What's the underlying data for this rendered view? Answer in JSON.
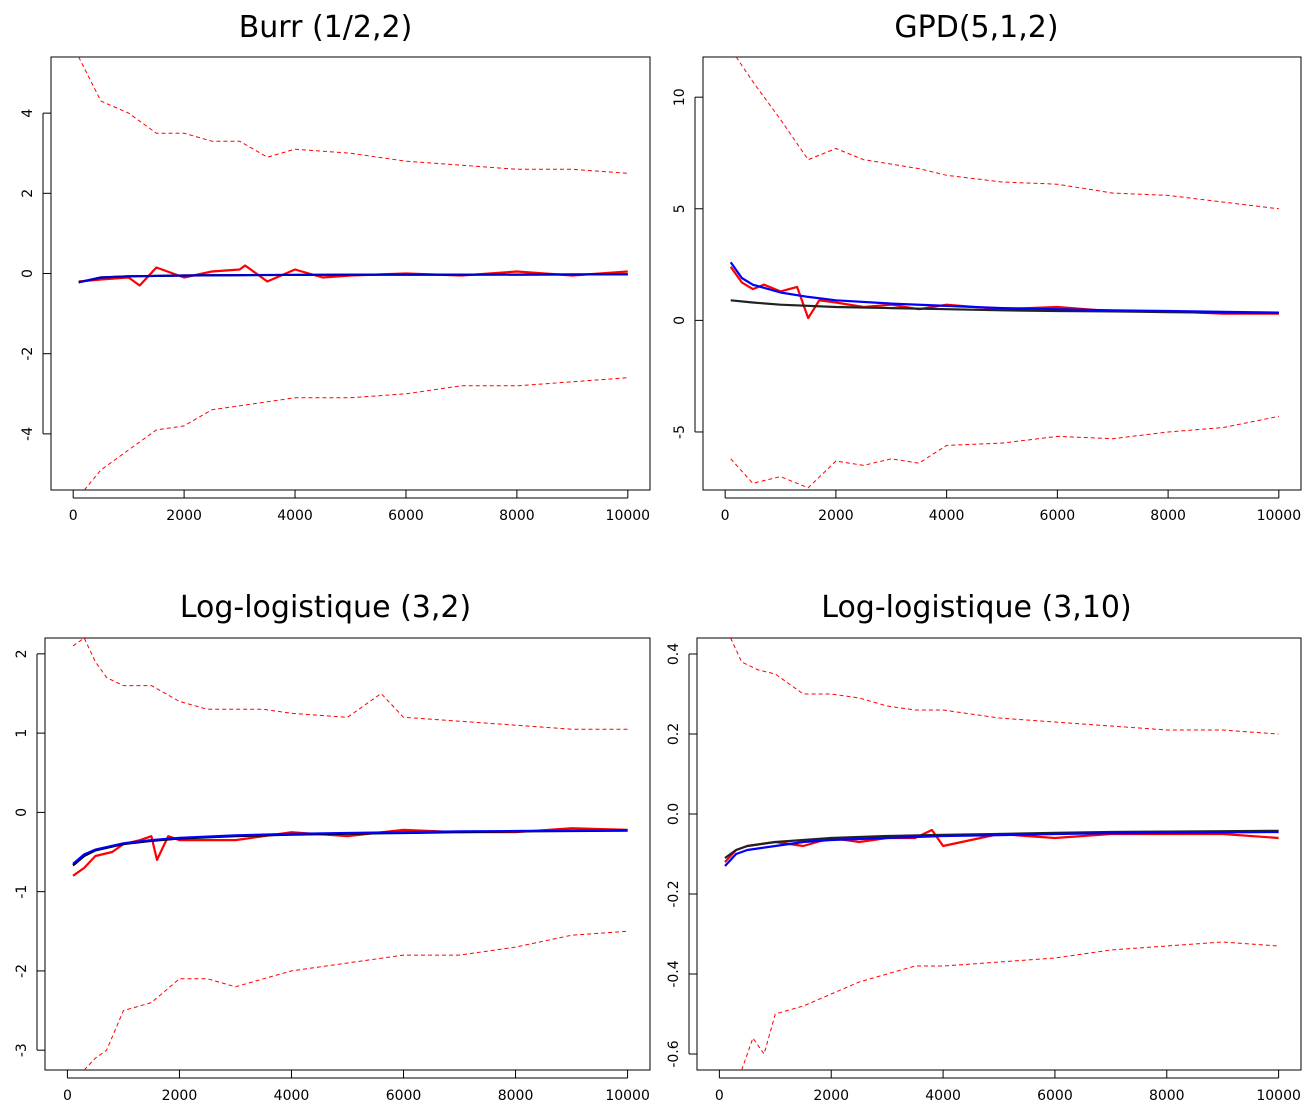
{
  "chart_data": [
    {
      "type": "line",
      "title": "Burr (1/2,2)",
      "xlim": [
        0,
        10000
      ],
      "ylim": [
        -5.4,
        5.4
      ],
      "xticks": [
        "0",
        "2000",
        "4000",
        "6000",
        "8000",
        "10000"
      ],
      "yticks": [
        "-4",
        "-2",
        "0",
        "2",
        "4"
      ],
      "grid": false,
      "series": [
        {
          "style": "dashed",
          "color": "#ff0000",
          "x": [
            100,
            500,
            1000,
            1500,
            2000,
            2500,
            3000,
            3500,
            4000,
            5000,
            6000,
            7000,
            8000,
            9000,
            10000
          ],
          "y": [
            5.4,
            4.3,
            4.0,
            3.5,
            3.5,
            3.3,
            3.3,
            2.9,
            3.1,
            3.0,
            2.8,
            2.7,
            2.6,
            2.6,
            2.5
          ]
        },
        {
          "style": "dashed",
          "color": "#ff0000",
          "x": [
            200,
            500,
            1000,
            1500,
            2000,
            2500,
            3000,
            3500,
            4000,
            5000,
            6000,
            7000,
            8000,
            9000,
            10000
          ],
          "y": [
            -5.4,
            -4.9,
            -4.4,
            -3.9,
            -3.8,
            -3.4,
            -3.3,
            -3.2,
            -3.1,
            -3.1,
            -3.0,
            -2.8,
            -2.8,
            -2.7,
            -2.6
          ]
        },
        {
          "style": "solid",
          "color": "#ff0000",
          "x": [
            100,
            500,
            1000,
            1200,
            1500,
            2000,
            2500,
            3000,
            3100,
            3500,
            4000,
            4500,
            5000,
            6000,
            7000,
            8000,
            9000,
            10000
          ],
          "y": [
            -0.2,
            -0.15,
            -0.1,
            -0.3,
            0.15,
            -0.1,
            0.05,
            0.1,
            0.2,
            -0.2,
            0.1,
            -0.1,
            -0.05,
            0.0,
            -0.05,
            0.05,
            -0.05,
            0.05
          ]
        },
        {
          "style": "solid",
          "color": "#000000",
          "x": [
            100,
            500,
            1000,
            2000,
            3000,
            5000,
            7000,
            10000
          ],
          "y": [
            -0.22,
            -0.1,
            -0.07,
            -0.05,
            -0.04,
            -0.03,
            -0.03,
            -0.02
          ]
        },
        {
          "style": "solid",
          "color": "#0000cc",
          "x": [
            100,
            500,
            1000,
            2000,
            3000,
            5000,
            7000,
            10000
          ],
          "y": [
            -0.22,
            -0.1,
            -0.07,
            -0.05,
            -0.04,
            -0.03,
            -0.03,
            -0.02
          ]
        }
      ]
    },
    {
      "type": "line",
      "title": "GPD(5,1,2)",
      "xlim": [
        0,
        10000
      ],
      "ylim": [
        -7.6,
        11.8
      ],
      "xticks": [
        "0",
        "2000",
        "4000",
        "6000",
        "8000",
        "10000"
      ],
      "yticks": [
        "-5",
        "0",
        "5",
        "10"
      ],
      "grid": false,
      "series": [
        {
          "style": "dashed",
          "color": "#ff0000",
          "x": [
            200,
            500,
            1000,
            1500,
            2000,
            2500,
            3000,
            3500,
            4000,
            5000,
            6000,
            7000,
            8000,
            9000,
            10000
          ],
          "y": [
            11.8,
            10.7,
            9.0,
            7.2,
            7.7,
            7.2,
            7.0,
            6.8,
            6.5,
            6.2,
            6.1,
            5.7,
            5.6,
            5.3,
            5.0
          ]
        },
        {
          "style": "dashed",
          "color": "#ff0000",
          "x": [
            100,
            500,
            1000,
            1500,
            2000,
            2500,
            3000,
            3500,
            4000,
            5000,
            6000,
            7000,
            8000,
            9000,
            10000
          ],
          "y": [
            -6.2,
            -7.3,
            -7.0,
            -7.5,
            -6.3,
            -6.5,
            -6.2,
            -6.4,
            -5.6,
            -5.5,
            -5.2,
            -5.3,
            -5.0,
            -4.8,
            -4.3
          ]
        },
        {
          "style": "solid",
          "color": "#ff0000",
          "x": [
            100,
            300,
            500,
            700,
            1000,
            1300,
            1500,
            1700,
            2000,
            2500,
            3000,
            3500,
            4000,
            5000,
            6000,
            7000,
            8000,
            9000,
            10000
          ],
          "y": [
            2.4,
            1.7,
            1.4,
            1.6,
            1.3,
            1.5,
            0.1,
            0.9,
            0.8,
            0.6,
            0.7,
            0.5,
            0.7,
            0.5,
            0.6,
            0.4,
            0.4,
            0.3,
            0.3
          ]
        },
        {
          "style": "solid",
          "color": "#222222",
          "x": [
            100,
            500,
            1000,
            2000,
            3000,
            4000,
            5000,
            6000,
            7000,
            8000,
            9000,
            10000
          ],
          "y": [
            0.9,
            0.8,
            0.7,
            0.6,
            0.55,
            0.5,
            0.45,
            0.42,
            0.4,
            0.37,
            0.35,
            0.33
          ]
        },
        {
          "style": "solid",
          "color": "#0000ff",
          "x": [
            100,
            300,
            500,
            1000,
            1500,
            2000,
            3000,
            4000,
            5000,
            6000,
            7000,
            8000,
            9000,
            10000
          ],
          "y": [
            2.6,
            1.9,
            1.6,
            1.25,
            1.05,
            0.9,
            0.75,
            0.65,
            0.55,
            0.5,
            0.45,
            0.42,
            0.38,
            0.35
          ]
        }
      ]
    },
    {
      "type": "line",
      "title": "Log-logistique (3,2)",
      "xlim": [
        0,
        10000
      ],
      "ylim": [
        -3.25,
        2.2
      ],
      "xticks": [
        "0",
        "2000",
        "4000",
        "6000",
        "8000",
        "10000"
      ],
      "yticks": [
        "-3",
        "-2",
        "-1",
        "0",
        "1",
        "2"
      ],
      "grid": false,
      "series": [
        {
          "style": "dashed",
          "color": "#ff0000",
          "x": [
            100,
            300,
            500,
            700,
            1000,
            1500,
            2000,
            2500,
            3000,
            3500,
            4000,
            5000,
            5600,
            6000,
            7000,
            8000,
            9000,
            10000
          ],
          "y": [
            2.1,
            2.2,
            1.9,
            1.7,
            1.6,
            1.6,
            1.4,
            1.3,
            1.3,
            1.3,
            1.25,
            1.2,
            1.5,
            1.2,
            1.15,
            1.1,
            1.05,
            1.05
          ]
        },
        {
          "style": "dashed",
          "color": "#ff0000",
          "x": [
            300,
            500,
            700,
            1000,
            1500,
            2000,
            2500,
            3000,
            3500,
            4000,
            5000,
            6000,
            7000,
            8000,
            9000,
            10000
          ],
          "y": [
            -3.25,
            -3.1,
            -3.0,
            -2.5,
            -2.4,
            -2.1,
            -2.1,
            -2.2,
            -2.1,
            -2.0,
            -1.9,
            -1.8,
            -1.8,
            -1.7,
            -1.55,
            -1.5
          ]
        },
        {
          "style": "solid",
          "color": "#ff0000",
          "x": [
            100,
            300,
            500,
            800,
            1000,
            1300,
            1500,
            1600,
            1800,
            2000,
            2500,
            3000,
            3500,
            4000,
            5000,
            6000,
            7000,
            8000,
            9000,
            10000
          ],
          "y": [
            -0.8,
            -0.7,
            -0.55,
            -0.5,
            -0.4,
            -0.35,
            -0.3,
            -0.6,
            -0.3,
            -0.35,
            -0.35,
            -0.35,
            -0.3,
            -0.25,
            -0.3,
            -0.22,
            -0.25,
            -0.25,
            -0.2,
            -0.22
          ]
        },
        {
          "style": "solid",
          "color": "#000000",
          "x": [
            100,
            300,
            500,
            1000,
            1500,
            2000,
            3000,
            4000,
            5000,
            6000,
            7000,
            8000,
            9000,
            10000
          ],
          "y": [
            -0.67,
            -0.55,
            -0.48,
            -0.4,
            -0.36,
            -0.33,
            -0.3,
            -0.28,
            -0.27,
            -0.26,
            -0.25,
            -0.24,
            -0.235,
            -0.23
          ]
        },
        {
          "style": "solid",
          "color": "#0000ff",
          "x": [
            100,
            300,
            500,
            1000,
            1500,
            2000,
            3000,
            4000,
            5000,
            6000,
            7000,
            8000,
            9000,
            10000
          ],
          "y": [
            -0.65,
            -0.53,
            -0.47,
            -0.39,
            -0.35,
            -0.32,
            -0.29,
            -0.27,
            -0.26,
            -0.25,
            -0.24,
            -0.235,
            -0.23,
            -0.225
          ]
        }
      ]
    },
    {
      "type": "line",
      "title": "Log-logistique (3,10)",
      "xlim": [
        0,
        10000
      ],
      "ylim": [
        -0.64,
        0.44
      ],
      "xticks": [
        "0",
        "2000",
        "4000",
        "6000",
        "8000",
        "10000"
      ],
      "yticks": [
        "-0.6",
        "-0.4",
        "-0.2",
        "0.0",
        "0.2",
        "0.4"
      ],
      "grid": false,
      "series": [
        {
          "style": "dashed",
          "color": "#ff0000",
          "x": [
            200,
            400,
            700,
            1000,
            1500,
            2000,
            2500,
            3000,
            3500,
            4000,
            5000,
            6000,
            7000,
            8000,
            9000,
            10000
          ],
          "y": [
            0.44,
            0.38,
            0.36,
            0.35,
            0.3,
            0.3,
            0.29,
            0.27,
            0.26,
            0.26,
            0.24,
            0.23,
            0.22,
            0.21,
            0.21,
            0.2
          ]
        },
        {
          "style": "dashed",
          "color": "#ff0000",
          "x": [
            400,
            600,
            800,
            1000,
            1500,
            2000,
            2500,
            3000,
            3500,
            4000,
            5000,
            6000,
            7000,
            8000,
            9000,
            10000
          ],
          "y": [
            -0.64,
            -0.56,
            -0.6,
            -0.5,
            -0.48,
            -0.45,
            -0.42,
            -0.4,
            -0.38,
            -0.38,
            -0.37,
            -0.36,
            -0.34,
            -0.33,
            -0.32,
            -0.33
          ]
        },
        {
          "style": "solid",
          "color": "#ff0000",
          "x": [
            100,
            300,
            500,
            1000,
            1500,
            2000,
            2500,
            3000,
            3500,
            3800,
            4000,
            5000,
            6000,
            7000,
            8000,
            9000,
            10000
          ],
          "y": [
            -0.12,
            -0.09,
            -0.08,
            -0.07,
            -0.08,
            -0.06,
            -0.07,
            -0.06,
            -0.06,
            -0.04,
            -0.08,
            -0.05,
            -0.06,
            -0.05,
            -0.05,
            -0.05,
            -0.06
          ]
        },
        {
          "style": "solid",
          "color": "#222222",
          "x": [
            100,
            300,
            500,
            1000,
            1500,
            2000,
            3000,
            4000,
            5000,
            6000,
            7000,
            8000,
            9000,
            10000
          ],
          "y": [
            -0.11,
            -0.09,
            -0.08,
            -0.07,
            -0.065,
            -0.06,
            -0.055,
            -0.052,
            -0.05,
            -0.047,
            -0.045,
            -0.044,
            -0.043,
            -0.042
          ]
        },
        {
          "style": "solid",
          "color": "#0000ff",
          "x": [
            100,
            300,
            500,
            1000,
            1500,
            2000,
            3000,
            4000,
            5000,
            6000,
            7000,
            8000,
            9000,
            10000
          ],
          "y": [
            -0.13,
            -0.1,
            -0.09,
            -0.08,
            -0.07,
            -0.065,
            -0.06,
            -0.055,
            -0.053,
            -0.05,
            -0.048,
            -0.047,
            -0.046,
            -0.045
          ]
        }
      ]
    }
  ]
}
